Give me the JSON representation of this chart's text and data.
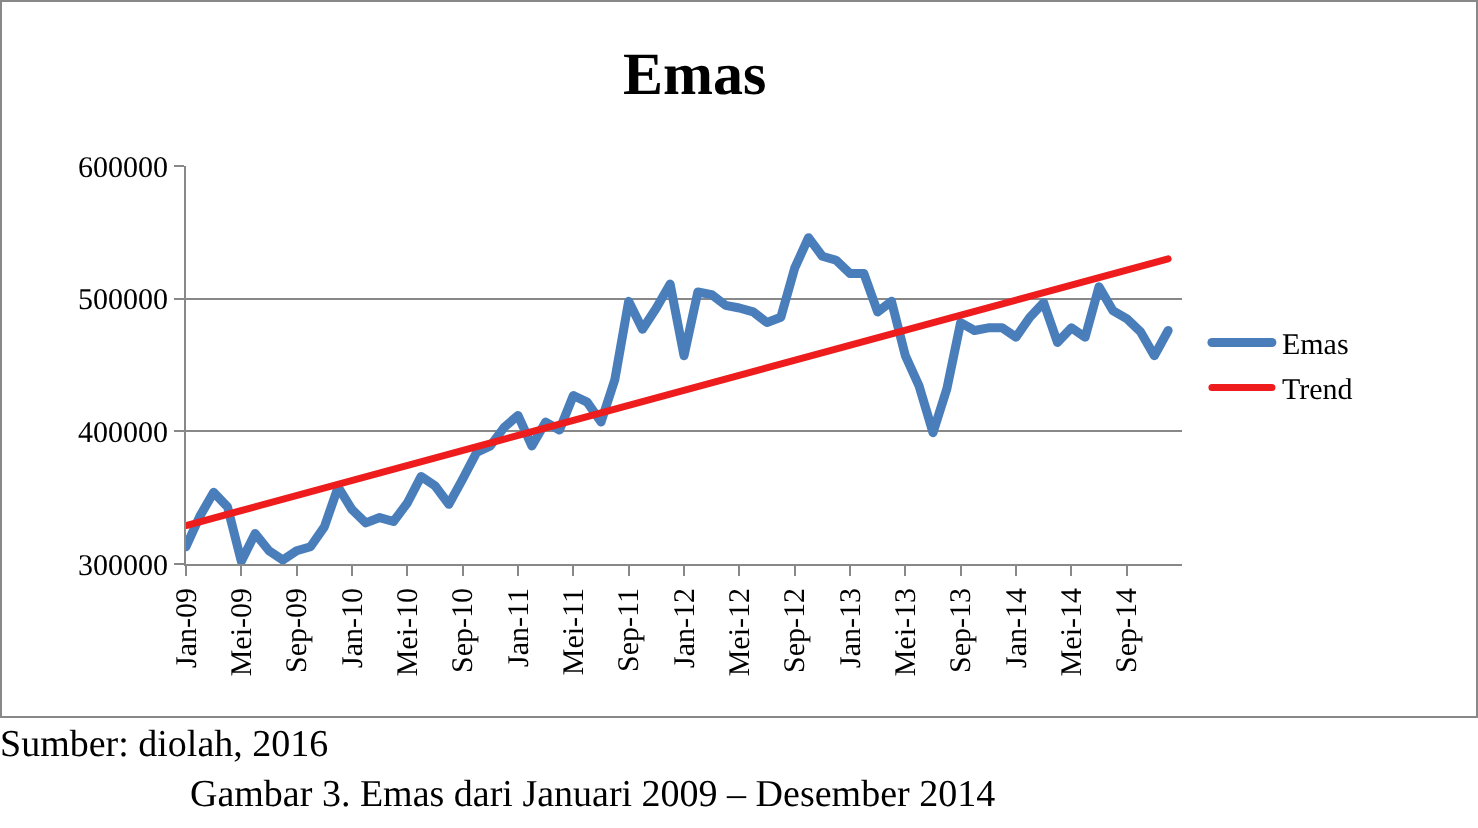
{
  "chart_data": {
    "type": "line",
    "title": "Emas",
    "categories": [
      "Jan-09",
      null,
      null,
      null,
      "Mei-09",
      null,
      null,
      null,
      "Sep-09",
      null,
      null,
      null,
      "Jan-10",
      null,
      null,
      null,
      "Mei-10",
      null,
      null,
      null,
      "Sep-10",
      null,
      null,
      null,
      "Jan-11",
      null,
      null,
      null,
      "Mei-11",
      null,
      null,
      null,
      "Sep-11",
      null,
      null,
      null,
      "Jan-12",
      null,
      null,
      null,
      "Mei-12",
      null,
      null,
      null,
      "Sep-12",
      null,
      null,
      null,
      "Jan-13",
      null,
      null,
      null,
      "Mei-13",
      null,
      null,
      null,
      "Sep-13",
      null,
      null,
      null,
      "Jan-14",
      null,
      null,
      null,
      "Mei-14",
      null,
      null,
      null,
      "Sep-14",
      null,
      null,
      null
    ],
    "series": [
      {
        "name": "Emas",
        "color": "#4a7ebb",
        "values": [
          313000,
          336000,
          354000,
          343000,
          302000,
          323000,
          310000,
          303000,
          310000,
          313000,
          328000,
          358000,
          341000,
          331000,
          335000,
          332000,
          346000,
          366000,
          359000,
          345000,
          364000,
          384000,
          389000,
          403000,
          412000,
          389000,
          407000,
          401000,
          427000,
          422000,
          407000,
          439000,
          498000,
          477000,
          493000,
          511000,
          457000,
          505000,
          503000,
          495000,
          493000,
          490000,
          482000,
          486000,
          523000,
          546000,
          532000,
          529000,
          519000,
          519000,
          490000,
          498000,
          457000,
          434000,
          399000,
          432000,
          482000,
          476000,
          478000,
          478000,
          471000,
          486000,
          497000,
          467000,
          478000,
          471000,
          509000,
          491000,
          485000,
          475000,
          457000,
          476000
        ]
      },
      {
        "name": "Trend",
        "color": "#ee1c1c",
        "values": [
          329000,
          null,
          null,
          null,
          null,
          null,
          null,
          null,
          null,
          null,
          null,
          null,
          null,
          null,
          null,
          null,
          null,
          null,
          null,
          null,
          null,
          null,
          null,
          null,
          null,
          null,
          null,
          null,
          null,
          null,
          null,
          null,
          null,
          null,
          null,
          null,
          null,
          null,
          null,
          null,
          null,
          null,
          null,
          null,
          null,
          null,
          null,
          null,
          null,
          null,
          null,
          null,
          null,
          null,
          null,
          null,
          null,
          null,
          null,
          null,
          null,
          null,
          null,
          null,
          null,
          null,
          null,
          null,
          null,
          null,
          null,
          530000
        ]
      }
    ],
    "ylim": [
      300000,
      600000
    ],
    "yticks": [
      300000,
      400000,
      500000,
      600000
    ],
    "grid": "y",
    "legend": "right",
    "annotations": [
      "Sumber: diolah, 2016",
      "Gambar 3. Emas dari Januari 2009 – Desember 2014"
    ]
  }
}
